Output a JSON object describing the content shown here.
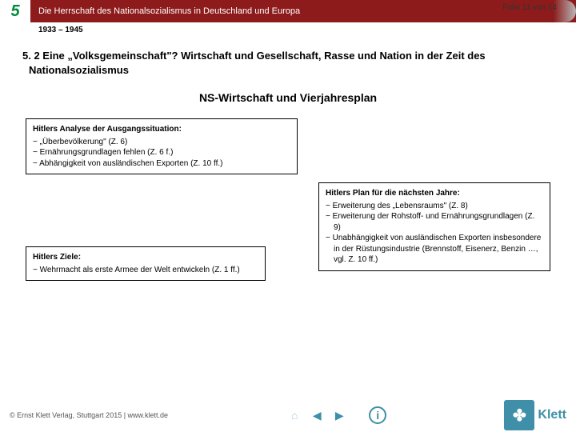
{
  "header": {
    "chapter_number": "5",
    "title": "Die Herrschaft des Nationalsozialismus in Deutschland und Europa",
    "page_indicator": "Folie 11 von 14",
    "date_range": "1933 – 1945"
  },
  "section": {
    "heading": "5. 2 Eine „Volksgemeinschaft\"? Wirtschaft und Gesellschaft, Rasse und Nation in der Zeit des Nationalsozialismus",
    "subtitle": "NS-Wirtschaft und Vierjahresplan"
  },
  "boxes": {
    "analysis": {
      "title": "Hitlers Analyse der Ausgangssituation:",
      "items": [
        "„Überbevölkerung\" (Z. 6)",
        "Ernährungsgrundlagen fehlen (Z. 6 f.)",
        "Abhängigkeit von ausländischen Exporten (Z. 10 ff.)"
      ]
    },
    "plan": {
      "title": "Hitlers Plan für die nächsten Jahre:",
      "items": [
        "Erweiterung des „Lebensraums\" (Z. 8)",
        "Erweiterung der Rohstoff- und Ernährungsgrundlagen (Z. 9)",
        "Unabhängigkeit von ausländischen Exporten insbesondere in der Rüstungsindustrie (Brennstoff, Eisenerz, Benzin …, vgl. Z. 10 ff.)"
      ]
    },
    "goals": {
      "title": "Hitlers Ziele:",
      "items": [
        "Wehrmacht als erste Armee der Welt entwickeln (Z. 1 ff.)"
      ]
    }
  },
  "footer": {
    "copyright": "© Ernst Klett Verlag, Stuttgart 2015 | www.klett.de",
    "logo_text": "Klett",
    "logo_mark": "✤"
  },
  "colors": {
    "brand_red": "#8d1b1b",
    "brand_green": "#008a3a",
    "nav_enabled": "#3f8fa8",
    "nav_disabled": "#a8cddb",
    "logo_bg": "#3f8fa8"
  }
}
